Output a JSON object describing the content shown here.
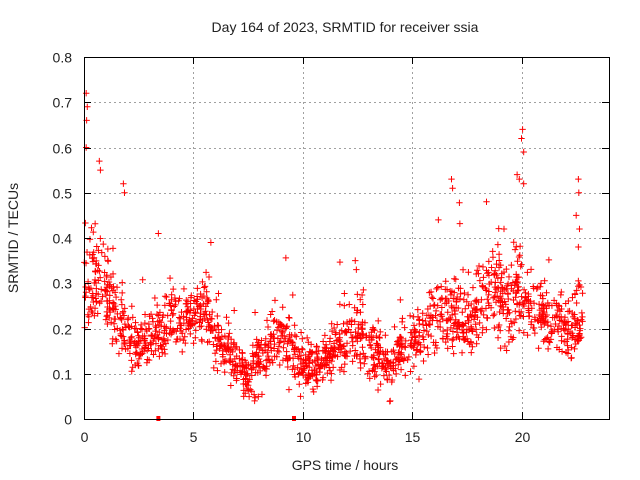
{
  "chart_data": {
    "type": "scatter",
    "title": "Day 164 of 2023, SRMTID for receiver ssia",
    "xlabel": "GPS time / hours",
    "ylabel": "SRMTID / TECUs",
    "xlim": [
      0,
      24
    ],
    "ylim": [
      0,
      0.8
    ],
    "x_ticks": [
      0,
      5,
      10,
      15,
      20
    ],
    "x_tick_labels": [
      "0",
      "5",
      "10",
      "15",
      "20"
    ],
    "y_ticks": [
      0,
      0.1,
      0.2,
      0.3,
      0.4,
      0.5,
      0.6,
      0.7,
      0.8
    ],
    "y_tick_labels": [
      "0",
      "0.1",
      "0.2",
      "0.3",
      "0.4",
      "0.5",
      "0.6",
      "0.7",
      "0.8"
    ],
    "grid": true,
    "marker": "+",
    "color": "#ff0000",
    "envelope": {
      "x": [
        0.0,
        0.5,
        1.0,
        1.5,
        2.0,
        2.5,
        3.0,
        3.5,
        4.0,
        4.5,
        5.0,
        5.5,
        6.0,
        6.5,
        7.0,
        7.5,
        8.0,
        8.5,
        9.0,
        9.5,
        10.0,
        10.5,
        11.0,
        11.5,
        12.0,
        12.5,
        13.0,
        13.5,
        14.0,
        14.5,
        15.0,
        15.5,
        16.0,
        16.5,
        17.0,
        17.5,
        18.0,
        18.5,
        19.0,
        19.5,
        20.0,
        20.5,
        21.0,
        21.5,
        22.0,
        22.5,
        22.8
      ],
      "y_typical": [
        0.3,
        0.32,
        0.28,
        0.23,
        0.17,
        0.16,
        0.18,
        0.2,
        0.23,
        0.22,
        0.23,
        0.24,
        0.18,
        0.16,
        0.12,
        0.09,
        0.13,
        0.17,
        0.19,
        0.15,
        0.11,
        0.12,
        0.13,
        0.15,
        0.18,
        0.19,
        0.16,
        0.14,
        0.13,
        0.15,
        0.17,
        0.19,
        0.22,
        0.24,
        0.23,
        0.21,
        0.24,
        0.28,
        0.26,
        0.25,
        0.28,
        0.26,
        0.23,
        0.21,
        0.2,
        0.21,
        0.22
      ],
      "spread": [
        0.08,
        0.09,
        0.08,
        0.07,
        0.05,
        0.05,
        0.05,
        0.05,
        0.05,
        0.05,
        0.05,
        0.06,
        0.05,
        0.05,
        0.04,
        0.04,
        0.05,
        0.05,
        0.05,
        0.05,
        0.04,
        0.04,
        0.05,
        0.05,
        0.05,
        0.06,
        0.05,
        0.05,
        0.05,
        0.05,
        0.05,
        0.06,
        0.06,
        0.07,
        0.07,
        0.06,
        0.07,
        0.08,
        0.08,
        0.08,
        0.08,
        0.07,
        0.06,
        0.06,
        0.06,
        0.07,
        0.06
      ]
    },
    "peaks": [
      {
        "x": 0.1,
        "y": 0.72
      },
      {
        "x": 0.15,
        "y": 0.69
      },
      {
        "x": 0.12,
        "y": 0.66
      },
      {
        "x": 0.1,
        "y": 0.6
      },
      {
        "x": 0.7,
        "y": 0.57
      },
      {
        "x": 0.75,
        "y": 0.55
      },
      {
        "x": 1.8,
        "y": 0.52
      },
      {
        "x": 1.85,
        "y": 0.5
      },
      {
        "x": 3.4,
        "y": 0.41
      },
      {
        "x": 5.8,
        "y": 0.39
      },
      {
        "x": 12.4,
        "y": 0.35
      },
      {
        "x": 12.45,
        "y": 0.33
      },
      {
        "x": 16.8,
        "y": 0.53
      },
      {
        "x": 16.85,
        "y": 0.51
      },
      {
        "x": 16.2,
        "y": 0.44
      },
      {
        "x": 18.4,
        "y": 0.48
      },
      {
        "x": 19.8,
        "y": 0.54
      },
      {
        "x": 19.9,
        "y": 0.53
      },
      {
        "x": 20.05,
        "y": 0.64
      },
      {
        "x": 20.0,
        "y": 0.62
      },
      {
        "x": 20.1,
        "y": 0.59
      },
      {
        "x": 20.1,
        "y": 0.52
      },
      {
        "x": 22.6,
        "y": 0.53
      },
      {
        "x": 22.62,
        "y": 0.5
      },
      {
        "x": 22.5,
        "y": 0.45
      },
      {
        "x": 22.65,
        "y": 0.42
      },
      {
        "x": 22.6,
        "y": 0.38
      },
      {
        "x": 19.2,
        "y": 0.42
      }
    ],
    "lows": [
      {
        "x": 7.8,
        "y": 0.04
      },
      {
        "x": 9.9,
        "y": 0.05
      },
      {
        "x": 10.5,
        "y": 0.06
      },
      {
        "x": 14.0,
        "y": 0.04
      },
      {
        "x": 7.3,
        "y": 0.05
      }
    ],
    "zero_markers": [
      {
        "x": 3.4,
        "y": 0.0
      },
      {
        "x": 9.6,
        "y": 0.0
      }
    ]
  }
}
